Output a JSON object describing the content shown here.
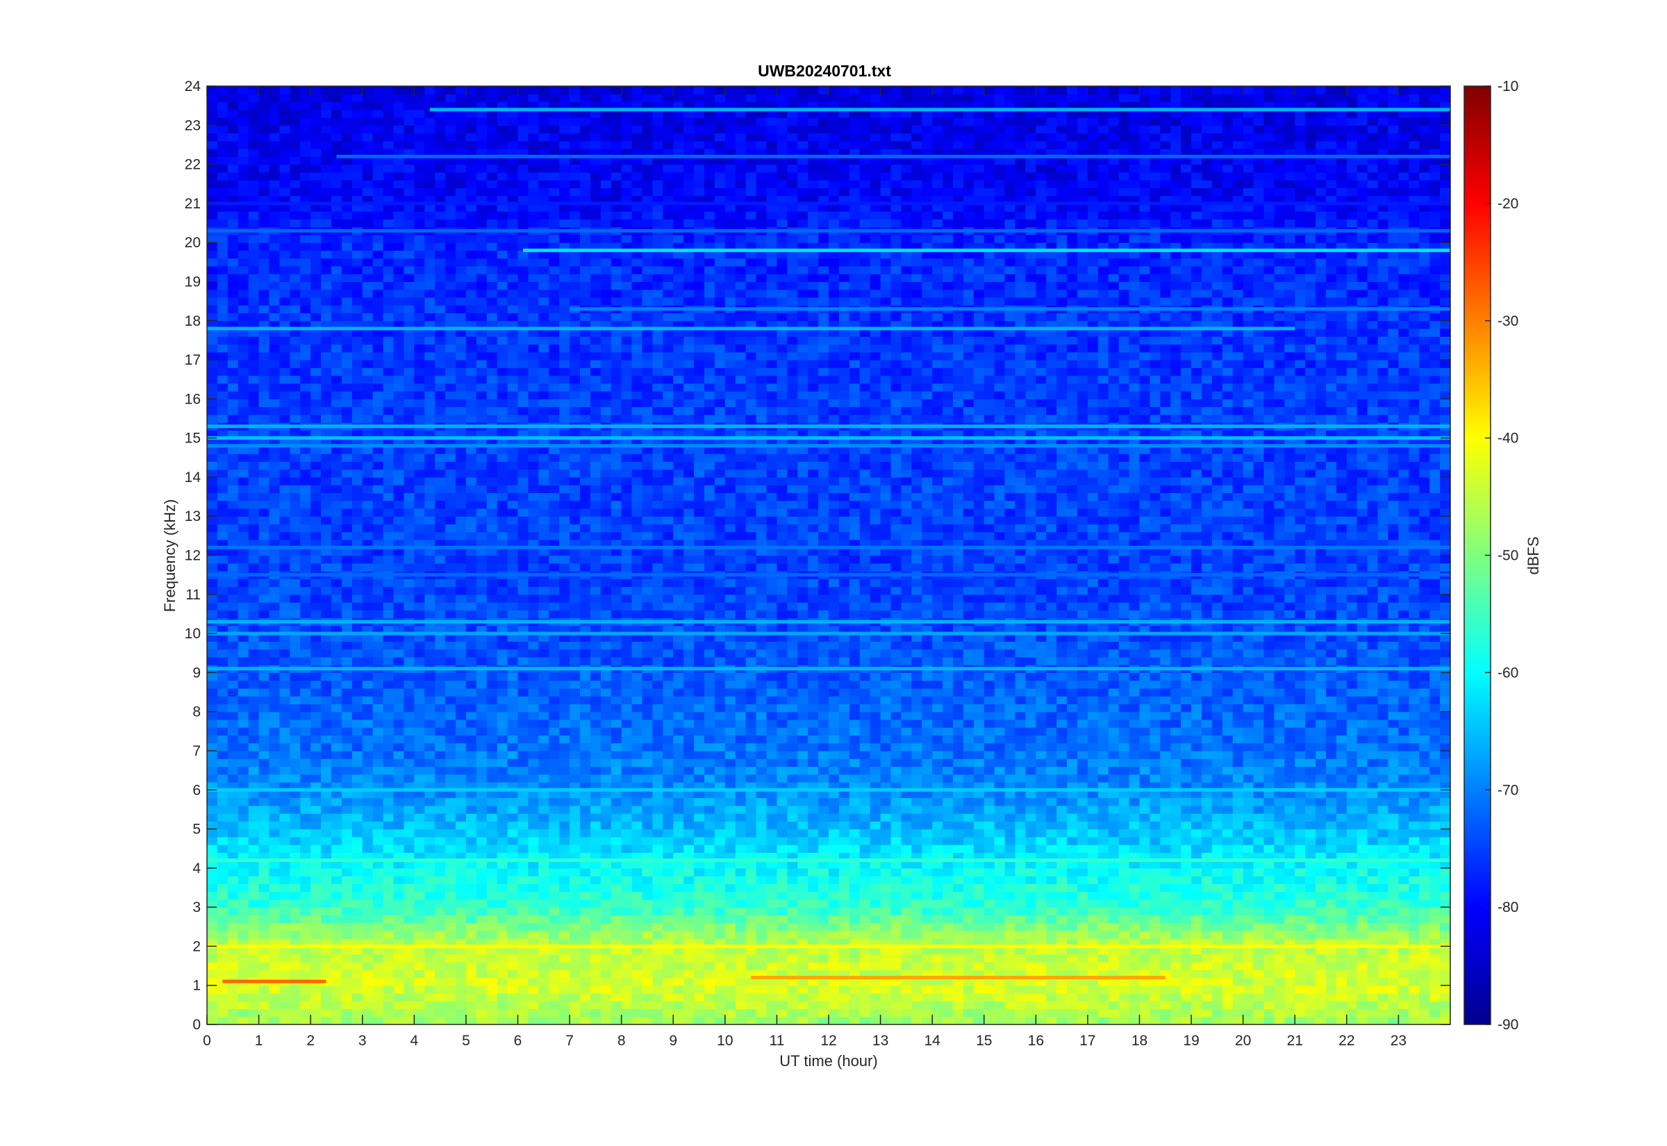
{
  "chart_data": {
    "type": "heatmap",
    "title": "UWB20240701.txt",
    "xlabel": "UT time (hour)",
    "ylabel": "Frequency (kHz)",
    "colorbar_label": "dBFS",
    "xlim": [
      0,
      24
    ],
    "ylim": [
      0,
      24
    ],
    "clim": [
      -90,
      -10
    ],
    "colormap": "jet",
    "x_ticks": [
      "0",
      "1",
      "2",
      "3",
      "4",
      "5",
      "6",
      "7",
      "8",
      "9",
      "10",
      "11",
      "12",
      "13",
      "14",
      "15",
      "16",
      "17",
      "18",
      "19",
      "20",
      "21",
      "22",
      "23"
    ],
    "y_ticks": [
      "0",
      "1",
      "2",
      "3",
      "4",
      "5",
      "6",
      "7",
      "8",
      "9",
      "10",
      "11",
      "12",
      "13",
      "14",
      "15",
      "16",
      "17",
      "18",
      "19",
      "20",
      "21",
      "22",
      "23",
      "24"
    ],
    "colorbar_ticks": [
      "-90",
      "-80",
      "-70",
      "-60",
      "-50",
      "-40",
      "-30",
      "-20",
      "-10"
    ],
    "frequency_profile": [
      {
        "freq": 0.0,
        "level": -48
      },
      {
        "freq": 1.0,
        "level": -43
      },
      {
        "freq": 2.0,
        "level": -45
      },
      {
        "freq": 2.5,
        "level": -50
      },
      {
        "freq": 3.0,
        "level": -56
      },
      {
        "freq": 4.0,
        "level": -60
      },
      {
        "freq": 5.0,
        "level": -65
      },
      {
        "freq": 6.0,
        "level": -69
      },
      {
        "freq": 7.0,
        "level": -71
      },
      {
        "freq": 8.0,
        "level": -72
      },
      {
        "freq": 9.0,
        "level": -73
      },
      {
        "freq": 10.0,
        "level": -74
      },
      {
        "freq": 12.0,
        "level": -75
      },
      {
        "freq": 15.0,
        "level": -75
      },
      {
        "freq": 18.0,
        "level": -76
      },
      {
        "freq": 20.0,
        "level": -77
      },
      {
        "freq": 21.0,
        "level": -80
      },
      {
        "freq": 24.0,
        "level": -82
      }
    ],
    "tone_lines": [
      {
        "freq": 19.8,
        "t_start": 6.1,
        "t_end": 24.0,
        "level": -62
      },
      {
        "freq": 23.4,
        "t_start": 4.3,
        "t_end": 24.0,
        "level": -66
      },
      {
        "freq": 22.2,
        "t_start": 2.5,
        "t_end": 24.0,
        "level": -72
      },
      {
        "freq": 18.3,
        "t_start": 7.0,
        "t_end": 24.0,
        "level": -70
      },
      {
        "freq": 17.8,
        "t_start": 0.0,
        "t_end": 21.0,
        "level": -66
      },
      {
        "freq": 15.3,
        "t_start": 0.0,
        "t_end": 24.0,
        "level": -66
      },
      {
        "freq": 15.0,
        "t_start": 0.0,
        "t_end": 24.0,
        "level": -65
      },
      {
        "freq": 14.8,
        "t_start": 0.0,
        "t_end": 24.0,
        "level": -69
      },
      {
        "freq": 10.3,
        "t_start": 0.0,
        "t_end": 24.0,
        "level": -66
      },
      {
        "freq": 10.0,
        "t_start": 0.0,
        "t_end": 24.0,
        "level": -67
      },
      {
        "freq": 12.2,
        "t_start": 0.0,
        "t_end": 24.0,
        "level": -71
      },
      {
        "freq": 11.5,
        "t_start": 0.0,
        "t_end": 24.0,
        "level": -72
      },
      {
        "freq": 9.1,
        "t_start": 0.0,
        "t_end": 24.0,
        "level": -66
      },
      {
        "freq": 6.0,
        "t_start": 0.0,
        "t_end": 24.0,
        "level": -64
      },
      {
        "freq": 4.2,
        "t_start": 0.0,
        "t_end": 24.0,
        "level": -56
      },
      {
        "freq": 1.1,
        "t_start": 0.3,
        "t_end": 2.3,
        "level": -28
      },
      {
        "freq": 1.2,
        "t_start": 10.5,
        "t_end": 18.5,
        "level": -33
      },
      {
        "freq": 2.0,
        "t_start": 0.0,
        "t_end": 24.0,
        "level": -40
      },
      {
        "freq": 20.3,
        "t_start": 0.0,
        "t_end": 24.0,
        "level": -72
      },
      {
        "freq": 21.0,
        "t_start": 0.0,
        "t_end": 24.0,
        "level": -78
      }
    ]
  }
}
